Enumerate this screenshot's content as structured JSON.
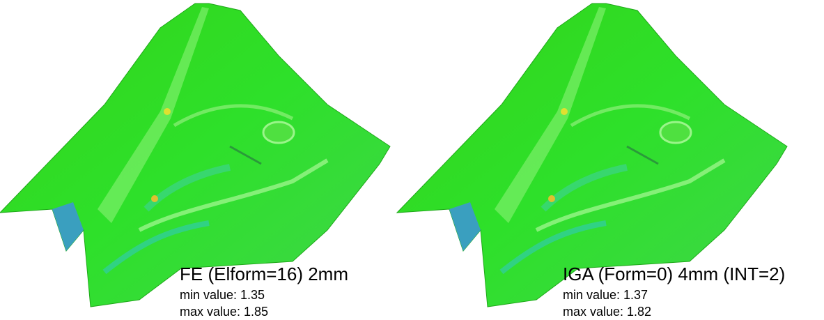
{
  "panels": [
    {
      "title": "FE (Elform=16) 2mm",
      "min": "min value: 1.35",
      "max": "max value: 1.85"
    },
    {
      "title": "IGA (Form=0) 4mm (INT=2)",
      "min": "min value: 1.37",
      "max": "max value: 1.82"
    }
  ]
}
